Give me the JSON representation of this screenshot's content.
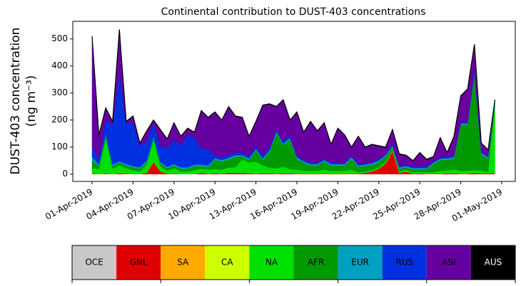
{
  "chart_data": {
    "type": "stacked-area",
    "title": "Continental contribution to DUST-403 concentrations",
    "ylabel": [
      "DUST-403 concentration",
      "(ng m⁻³)"
    ],
    "categories": [
      "01-Apr-2019",
      null,
      null,
      null,
      null,
      null,
      "04-Apr-2019",
      null,
      null,
      null,
      null,
      null,
      "07-Apr-2019",
      null,
      null,
      null,
      null,
      null,
      "10-Apr-2019",
      null,
      null,
      null,
      null,
      null,
      "13-Apr-2019",
      null,
      null,
      null,
      null,
      null,
      "16-Apr-2019",
      null,
      null,
      null,
      null,
      null,
      "19-Apr-2019",
      null,
      null,
      null,
      null,
      null,
      "22-Apr-2019",
      null,
      null,
      null,
      null,
      null,
      "25-Apr-2019",
      null,
      null,
      null,
      null,
      null,
      "28-Apr-2019",
      null,
      null,
      null,
      null,
      null,
      "01-May-2019"
    ],
    "ylim": [
      -27,
      565
    ],
    "yticks": [
      0,
      100,
      200,
      300,
      400,
      500
    ],
    "series": [
      {
        "name": "OCE",
        "color": "#c8c8c8",
        "values": [
          0,
          0,
          0,
          0,
          0,
          0,
          0,
          0,
          0,
          0,
          0,
          0,
          0,
          0,
          0,
          0,
          0,
          0,
          0,
          0,
          0,
          0,
          0,
          0,
          0,
          0,
          0,
          0,
          0,
          0,
          0,
          0,
          0,
          0,
          0,
          0,
          0,
          0,
          0,
          0,
          0,
          0,
          0,
          0,
          0,
          0,
          0,
          0,
          0,
          0,
          0,
          0,
          0,
          0,
          0,
          0,
          0,
          0,
          0,
          0,
          null
        ]
      },
      {
        "name": "GNL",
        "color": "#e00000",
        "values": [
          2,
          0,
          2,
          0,
          3,
          2,
          0,
          0,
          5,
          45,
          10,
          2,
          2,
          0,
          0,
          0,
          5,
          2,
          3,
          2,
          5,
          5,
          5,
          3,
          2,
          3,
          3,
          2,
          3,
          3,
          2,
          2,
          2,
          2,
          2,
          2,
          2,
          2,
          2,
          2,
          5,
          10,
          20,
          40,
          85,
          5,
          10,
          2,
          3,
          2,
          2,
          2,
          3,
          3,
          2,
          2,
          5,
          3,
          3,
          3,
          null
        ]
      },
      {
        "name": "SA",
        "color": "#ffaa00",
        "values": [
          0,
          0,
          0,
          0,
          0,
          0,
          0,
          0,
          0,
          0,
          0,
          0,
          0,
          0,
          0,
          0,
          0,
          0,
          0,
          0,
          0,
          0,
          0,
          0,
          0,
          0,
          0,
          0,
          0,
          0,
          0,
          0,
          0,
          0,
          0,
          0,
          0,
          0,
          0,
          0,
          0,
          0,
          0,
          0,
          0,
          0,
          0,
          0,
          0,
          0,
          0,
          0,
          0,
          0,
          0,
          0,
          0,
          0,
          0,
          0,
          null
        ]
      },
      {
        "name": "CA",
        "color": "#ccff00",
        "values": [
          0,
          0,
          0,
          0,
          0,
          0,
          0,
          0,
          0,
          0,
          0,
          0,
          0,
          0,
          0,
          0,
          0,
          0,
          0,
          0,
          0,
          0,
          0,
          0,
          0,
          0,
          0,
          0,
          0,
          0,
          0,
          0,
          0,
          0,
          0,
          0,
          0,
          0,
          0,
          0,
          0,
          0,
          0,
          0,
          0,
          0,
          0,
          0,
          0,
          0,
          0,
          0,
          0,
          0,
          0,
          0,
          0,
          0,
          0,
          0,
          null
        ]
      },
      {
        "name": "NA",
        "color": "#00e000",
        "values": [
          20,
          20,
          130,
          20,
          30,
          20,
          15,
          10,
          30,
          80,
          20,
          10,
          20,
          10,
          10,
          15,
          15,
          15,
          15,
          15,
          20,
          20,
          50,
          40,
          45,
          30,
          20,
          20,
          25,
          15,
          15,
          10,
          10,
          10,
          15,
          10,
          10,
          10,
          15,
          5,
          5,
          5,
          5,
          5,
          5,
          5,
          5,
          5,
          5,
          5,
          5,
          10,
          10,
          15,
          10,
          10,
          10,
          10,
          5,
          250,
          null
        ]
      },
      {
        "name": "AFR",
        "color": "#009900",
        "values": [
          30,
          10,
          10,
          10,
          10,
          10,
          10,
          10,
          10,
          10,
          10,
          10,
          10,
          10,
          10,
          15,
          10,
          10,
          35,
          30,
          30,
          40,
          10,
          10,
          40,
          20,
          60,
          130,
          80,
          110,
          40,
          30,
          20,
          20,
          30,
          20,
          20,
          20,
          40,
          20,
          20,
          20,
          20,
          20,
          10,
          10,
          10,
          10,
          10,
          10,
          30,
          40,
          40,
          40,
          170,
          170,
          350,
          60,
          50,
          10,
          null
        ]
      },
      {
        "name": "EUR",
        "color": "#00a0c0",
        "values": [
          10,
          5,
          5,
          5,
          5,
          5,
          5,
          5,
          5,
          5,
          5,
          5,
          5,
          5,
          5,
          5,
          5,
          5,
          5,
          5,
          5,
          5,
          5,
          5,
          5,
          5,
          5,
          5,
          5,
          5,
          5,
          5,
          5,
          5,
          5,
          5,
          5,
          5,
          5,
          5,
          5,
          5,
          5,
          5,
          5,
          5,
          5,
          5,
          5,
          5,
          5,
          5,
          5,
          5,
          5,
          5,
          5,
          5,
          5,
          5,
          null
        ]
      },
      {
        "name": "RUS",
        "color": "#0030e0",
        "values": [
          40,
          20,
          50,
          150,
          330,
          150,
          160,
          80,
          70,
          50,
          60,
          70,
          90,
          80,
          120,
          100,
          60,
          60,
          10,
          10,
          10,
          10,
          10,
          10,
          10,
          10,
          10,
          5,
          10,
          10,
          5,
          5,
          5,
          5,
          5,
          5,
          5,
          5,
          5,
          5,
          5,
          5,
          5,
          5,
          5,
          5,
          5,
          5,
          5,
          5,
          5,
          5,
          5,
          5,
          5,
          5,
          20,
          5,
          5,
          5,
          null
        ]
      },
      {
        "name": "ASI",
        "color": "#6600a0",
        "values": [
          406,
          88,
          46,
          8,
          155,
          6,
          23,
          8,
          38,
          8,
          58,
          31,
          61,
          33,
          23,
          18,
          138,
          116,
          160,
          136,
          178,
          133,
          128,
          70,
          91,
          185,
          160,
          86,
          150,
          55,
          161,
          101,
          151,
          116,
          131,
          66,
          126,
          101,
          31,
          101,
          58,
          63,
          48,
          23,
          53,
          43,
          33,
          21,
          50,
          26,
          16,
          71,
          15,
          70,
          96,
          121,
          88,
          30,
          20,
          0,
          null
        ]
      },
      {
        "name": "AUS",
        "color": "#000000",
        "values": [
          2,
          2,
          2,
          2,
          2,
          2,
          2,
          2,
          2,
          2,
          2,
          2,
          2,
          2,
          2,
          2,
          2,
          2,
          2,
          2,
          2,
          2,
          2,
          2,
          2,
          2,
          2,
          2,
          2,
          2,
          2,
          2,
          2,
          2,
          2,
          2,
          2,
          2,
          2,
          2,
          2,
          2,
          2,
          2,
          2,
          2,
          2,
          2,
          2,
          2,
          2,
          2,
          2,
          2,
          2,
          2,
          2,
          2,
          2,
          2,
          null
        ]
      }
    ]
  }
}
